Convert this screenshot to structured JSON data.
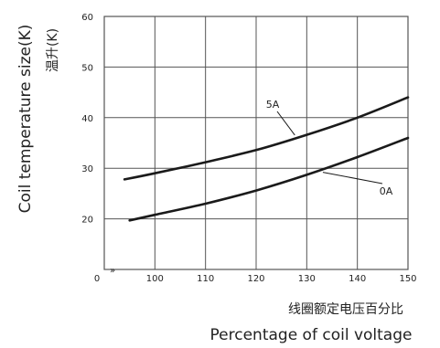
{
  "chart_data": {
    "type": "line",
    "xlabel": "Percentage of coil voltage",
    "xlabel_cn": "线圈额定电压百分比",
    "ylabel": "Coil temperature size(K)",
    "ylabel_cn": "温升(K)",
    "xlim": [
      90,
      150
    ],
    "ylim": [
      10,
      60
    ],
    "x_ticks": [
      "100",
      "110",
      "120",
      "130",
      "140",
      "150"
    ],
    "y_ticks": [
      "20",
      "30",
      "40",
      "50",
      "60"
    ],
    "origin_label": "0",
    "axis_break_mark": "»",
    "grid": true,
    "series": [
      {
        "name": "5A",
        "x": [
          94,
          100,
          110,
          120,
          130,
          140,
          150
        ],
        "y": [
          27.8,
          29,
          31.2,
          33.6,
          36.6,
          40,
          44
        ]
      },
      {
        "name": "0A",
        "x": [
          95,
          100,
          110,
          120,
          130,
          140,
          150
        ],
        "y": [
          19.7,
          20.8,
          23,
          25.6,
          28.7,
          32.2,
          36
        ]
      }
    ]
  },
  "colors": {
    "line": "#1a1a1a",
    "grid": "#555555",
    "text": "#222222"
  }
}
